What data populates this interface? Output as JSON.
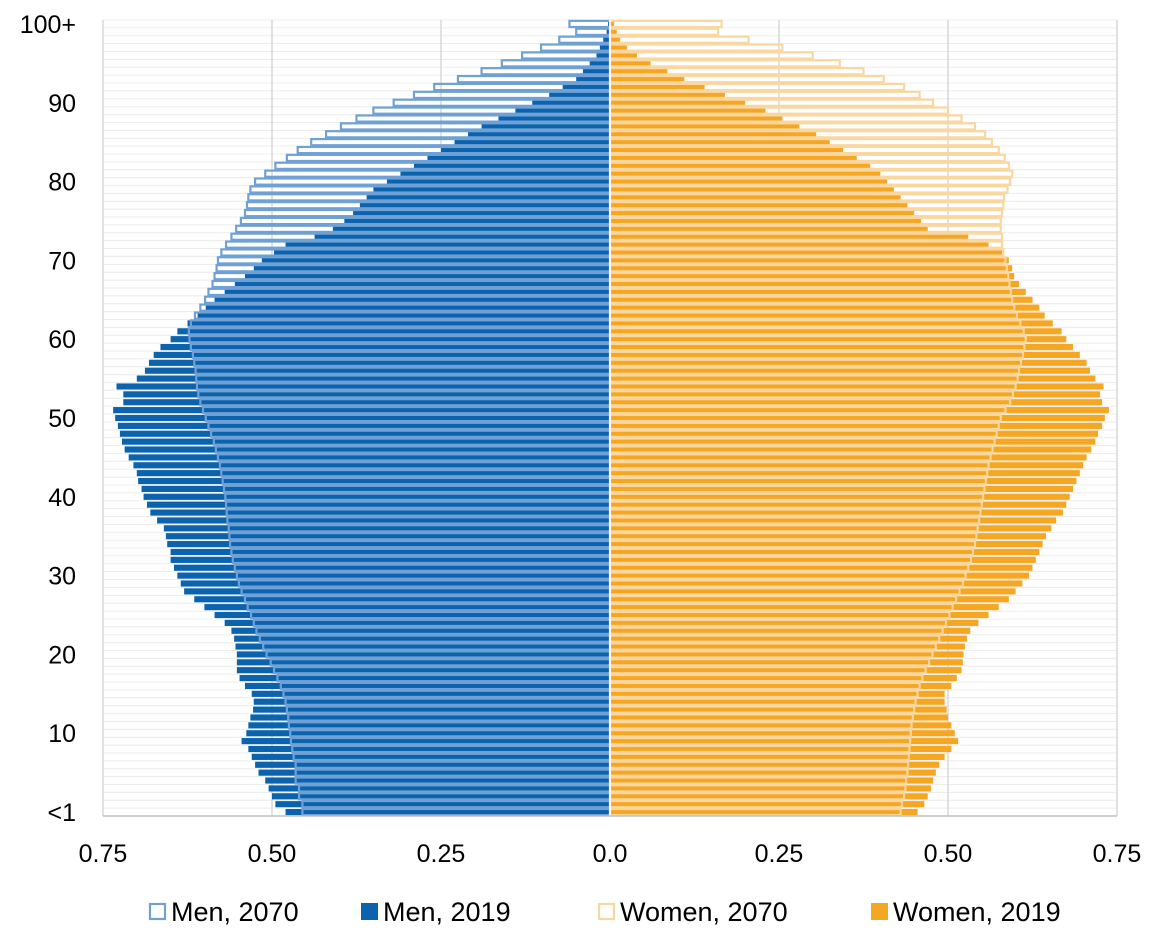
{
  "chart_data": {
    "type": "bar",
    "subtype": "population-pyramid",
    "orientation": "horizontal",
    "title": "",
    "xlabel": "",
    "ylabel": "",
    "xlim": [
      -0.75,
      0.75
    ],
    "x_ticks": [
      -0.75,
      -0.5,
      -0.25,
      0,
      0.25,
      0.5,
      0.75
    ],
    "x_tick_labels": [
      "0.75",
      "0.50",
      "0.25",
      "0.0",
      "0.25",
      "0.50",
      "0.75"
    ],
    "y_tick_labels": [
      "<1",
      "10",
      "20",
      "30",
      "40",
      "50",
      "60",
      "70",
      "80",
      "90",
      "100+"
    ],
    "y_tick_ages": [
      0,
      10,
      20,
      30,
      40,
      50,
      60,
      70,
      80,
      90,
      100
    ],
    "grid": "vertical",
    "legend_position": "bottom",
    "ages_count": 101,
    "series": [
      {
        "name": "Men, 2070",
        "side": "left",
        "style": "outline",
        "color": "#6fa1d6",
        "values": [
          0.455,
          0.455,
          0.46,
          0.46,
          0.465,
          0.465,
          0.465,
          0.468,
          0.47,
          0.472,
          0.473,
          0.475,
          0.476,
          0.478,
          0.48,
          0.483,
          0.487,
          0.492,
          0.497,
          0.502,
          0.508,
          0.513,
          0.518,
          0.523,
          0.527,
          0.531,
          0.536,
          0.54,
          0.545,
          0.549,
          0.552,
          0.555,
          0.558,
          0.56,
          0.562,
          0.563,
          0.564,
          0.566,
          0.567,
          0.568,
          0.569,
          0.571,
          0.573,
          0.575,
          0.577,
          0.58,
          0.583,
          0.586,
          0.59,
          0.594,
          0.598,
          0.602,
          0.606,
          0.609,
          0.611,
          0.612,
          0.613,
          0.615,
          0.617,
          0.62,
          0.622,
          0.623,
          0.62,
          0.614,
          0.606,
          0.599,
          0.594,
          0.588,
          0.585,
          0.582,
          0.58,
          0.575,
          0.568,
          0.56,
          0.553,
          0.546,
          0.54,
          0.537,
          0.535,
          0.532,
          0.525,
          0.51,
          0.495,
          0.478,
          0.462,
          0.442,
          0.42,
          0.398,
          0.375,
          0.35,
          0.32,
          0.29,
          0.26,
          0.225,
          0.19,
          0.16,
          0.13,
          0.102,
          0.075,
          0.05,
          0.06
        ]
      },
      {
        "name": "Men, 2019",
        "side": "left",
        "style": "filled",
        "color": "#0a63ac",
        "values": [
          0.48,
          0.495,
          0.5,
          0.505,
          0.51,
          0.52,
          0.525,
          0.53,
          0.535,
          0.545,
          0.538,
          0.535,
          0.532,
          0.528,
          0.527,
          0.53,
          0.54,
          0.548,
          0.552,
          0.552,
          0.552,
          0.554,
          0.556,
          0.56,
          0.57,
          0.585,
          0.6,
          0.615,
          0.63,
          0.635,
          0.64,
          0.645,
          0.65,
          0.65,
          0.655,
          0.657,
          0.66,
          0.67,
          0.68,
          0.685,
          0.69,
          0.693,
          0.698,
          0.7,
          0.705,
          0.712,
          0.718,
          0.722,
          0.725,
          0.728,
          0.732,
          0.735,
          0.72,
          0.72,
          0.73,
          0.7,
          0.688,
          0.682,
          0.675,
          0.665,
          0.65,
          0.64,
          0.625,
          0.61,
          0.598,
          0.585,
          0.57,
          0.555,
          0.54,
          0.527,
          0.515,
          0.497,
          0.48,
          0.437,
          0.41,
          0.393,
          0.38,
          0.37,
          0.36,
          0.35,
          0.33,
          0.31,
          0.29,
          0.27,
          0.25,
          0.23,
          0.21,
          0.19,
          0.165,
          0.14,
          0.115,
          0.09,
          0.07,
          0.05,
          0.04,
          0.03,
          0.02,
          0.015,
          0.01,
          0.005,
          0.003
        ]
      },
      {
        "name": "Women, 2070",
        "side": "right",
        "style": "outline",
        "color": "#fad7a0",
        "values": [
          0.43,
          0.432,
          0.435,
          0.437,
          0.438,
          0.44,
          0.441,
          0.442,
          0.443,
          0.444,
          0.445,
          0.446,
          0.448,
          0.45,
          0.452,
          0.455,
          0.458,
          0.462,
          0.467,
          0.472,
          0.477,
          0.482,
          0.487,
          0.492,
          0.497,
          0.502,
          0.507,
          0.512,
          0.517,
          0.522,
          0.526,
          0.53,
          0.534,
          0.537,
          0.54,
          0.542,
          0.544,
          0.546,
          0.548,
          0.55,
          0.552,
          0.554,
          0.556,
          0.558,
          0.56,
          0.563,
          0.566,
          0.569,
          0.572,
          0.575,
          0.578,
          0.585,
          0.592,
          0.596,
          0.6,
          0.603,
          0.605,
          0.608,
          0.611,
          0.613,
          0.615,
          0.612,
          0.607,
          0.602,
          0.598,
          0.595,
          0.593,
          0.591,
          0.589,
          0.587,
          0.585,
          0.582,
          0.58,
          0.58,
          0.578,
          0.578,
          0.58,
          0.582,
          0.583,
          0.588,
          0.592,
          0.595,
          0.59,
          0.584,
          0.575,
          0.565,
          0.555,
          0.54,
          0.52,
          0.5,
          0.478,
          0.458,
          0.435,
          0.405,
          0.375,
          0.34,
          0.3,
          0.255,
          0.205,
          0.16,
          0.165
        ]
      },
      {
        "name": "Women, 2019",
        "side": "right",
        "style": "filled",
        "color": "#f5a623",
        "values": [
          0.455,
          0.465,
          0.47,
          0.475,
          0.478,
          0.482,
          0.487,
          0.495,
          0.505,
          0.515,
          0.51,
          0.505,
          0.5,
          0.498,
          0.495,
          0.495,
          0.505,
          0.513,
          0.52,
          0.522,
          0.523,
          0.525,
          0.528,
          0.533,
          0.545,
          0.56,
          0.575,
          0.59,
          0.6,
          0.61,
          0.62,
          0.625,
          0.63,
          0.635,
          0.64,
          0.645,
          0.653,
          0.66,
          0.67,
          0.675,
          0.68,
          0.685,
          0.69,
          0.695,
          0.7,
          0.705,
          0.712,
          0.718,
          0.722,
          0.728,
          0.732,
          0.738,
          0.728,
          0.725,
          0.73,
          0.718,
          0.71,
          0.705,
          0.695,
          0.685,
          0.675,
          0.668,
          0.655,
          0.643,
          0.635,
          0.625,
          0.615,
          0.605,
          0.598,
          0.595,
          0.59,
          0.58,
          0.56,
          0.53,
          0.47,
          0.46,
          0.45,
          0.44,
          0.43,
          0.42,
          0.41,
          0.4,
          0.385,
          0.365,
          0.345,
          0.325,
          0.305,
          0.28,
          0.255,
          0.23,
          0.2,
          0.17,
          0.14,
          0.11,
          0.085,
          0.06,
          0.04,
          0.025,
          0.015,
          0.01,
          0.006
        ]
      }
    ]
  }
}
